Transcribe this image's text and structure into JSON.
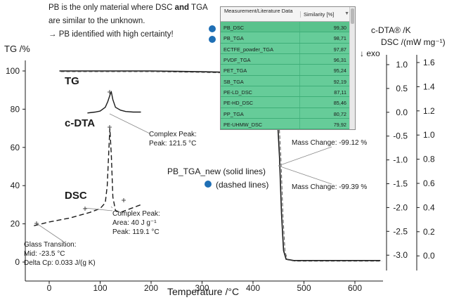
{
  "intro": {
    "line1_pre": "PB is the only material where DSC ",
    "line1_bold": "and",
    "line1_post": " TGA",
    "line2": "are similar to the unknown.",
    "line3": "→ PB identified with high certainty!"
  },
  "results_table": {
    "col_name": "Measurement/Literature Data",
    "col_similarity": "Similarity [%]",
    "rows": [
      {
        "name": "PB_DSC",
        "value": "99,30"
      },
      {
        "name": "PB_TGA",
        "value": "98,71"
      },
      {
        "name": "ECTFE_powder_TGA",
        "value": "97,87"
      },
      {
        "name": "PVDF_TGA",
        "value": "96,31"
      },
      {
        "name": "PET_TGA",
        "value": "95,24"
      },
      {
        "name": "SB_TGA",
        "value": "92,19"
      },
      {
        "name": "PE-LD_DSC",
        "value": "87,11"
      },
      {
        "name": "PE-HD_DSC",
        "value": "85,46"
      },
      {
        "name": "PP_TGA",
        "value": "80,72"
      },
      {
        "name": "PE-UHMW_DSC",
        "value": "79,92"
      }
    ]
  },
  "colors": {
    "marker": "#1f6fb5",
    "row": "#66cc99"
  },
  "chart_data": {
    "type": "line",
    "xlabel": "Temperature /°C",
    "x_ticks": [
      "0",
      "100",
      "200",
      "300",
      "400",
      "500",
      "600"
    ],
    "xlim": [
      -40,
      660
    ],
    "y_left": {
      "label": "TG /%",
      "ticks": [
        "0",
        "20",
        "40",
        "60",
        "80",
        "100"
      ],
      "lim": [
        -5,
        110
      ]
    },
    "y_right1": {
      "label": "c-DTA® /K",
      "label2": "↓ exo",
      "ticks": [
        "1.0",
        "0.5",
        "0.0",
        "-0.5",
        "-1.0",
        "-1.5",
        "-2.0",
        "-2.5",
        "-3.0"
      ]
    },
    "y_right2": {
      "label": "DSC /(mW mg⁻¹)",
      "ticks": [
        "1.6",
        "1.4",
        "1.2",
        "1.0",
        "0.8",
        "0.6",
        "0.4",
        "0.2",
        "0.0"
      ]
    },
    "grid": false,
    "series": [
      {
        "name": "TG",
        "x": [
          20,
          100,
          200,
          300,
          400,
          430,
          440,
          447,
          452,
          456,
          460,
          465,
          480,
          550,
          650
        ],
        "y": [
          100,
          100,
          100,
          99.6,
          99,
          97.5,
          93,
          80,
          55,
          25,
          6,
          1.5,
          0.8,
          0.8,
          0.8
        ]
      },
      {
        "name": "c-DTA",
        "x": [
          75,
          90,
          100,
          110,
          115,
          120,
          122,
          125,
          130,
          140,
          150,
          165,
          180
        ],
        "y": [
          78,
          78.5,
          79,
          81,
          84,
          88,
          89,
          85,
          81,
          79.5,
          78.8,
          78.5,
          78.5
        ]
      },
      {
        "name": "DSC",
        "x": [
          -30,
          0,
          40,
          80,
          100,
          110,
          114,
          117,
          119,
          122,
          125,
          130,
          140,
          160,
          180
        ],
        "y": [
          19,
          21,
          23,
          26,
          28,
          31,
          40,
          58,
          70,
          56,
          34,
          27,
          26,
          28,
          30
        ]
      }
    ],
    "labels": {
      "tg": "TG",
      "cdta": "c-DTA",
      "dsc": "DSC",
      "cdta_peak_1": "Complex Peak:",
      "cdta_peak_2": "Peak:  121.5 °C",
      "dsc_peak_1": "Complex Peak:",
      "dsc_peak_2": "Area:  40 J g⁻¹",
      "dsc_peak_3": "Peak:  119.1 °C",
      "glass_1": "Glass Transition:",
      "glass_2": "Mid:             -23.5 °C",
      "glass_3": "Delta Cp:      0.033 J/(g K)",
      "mass_change_1": "Mass Change:  -99.12 %",
      "mass_change_2": "Mass Change:  -99.39 %",
      "legend_solid": "PB_TGA_new (solid lines)",
      "legend_dashed": "(dashed lines)"
    }
  }
}
